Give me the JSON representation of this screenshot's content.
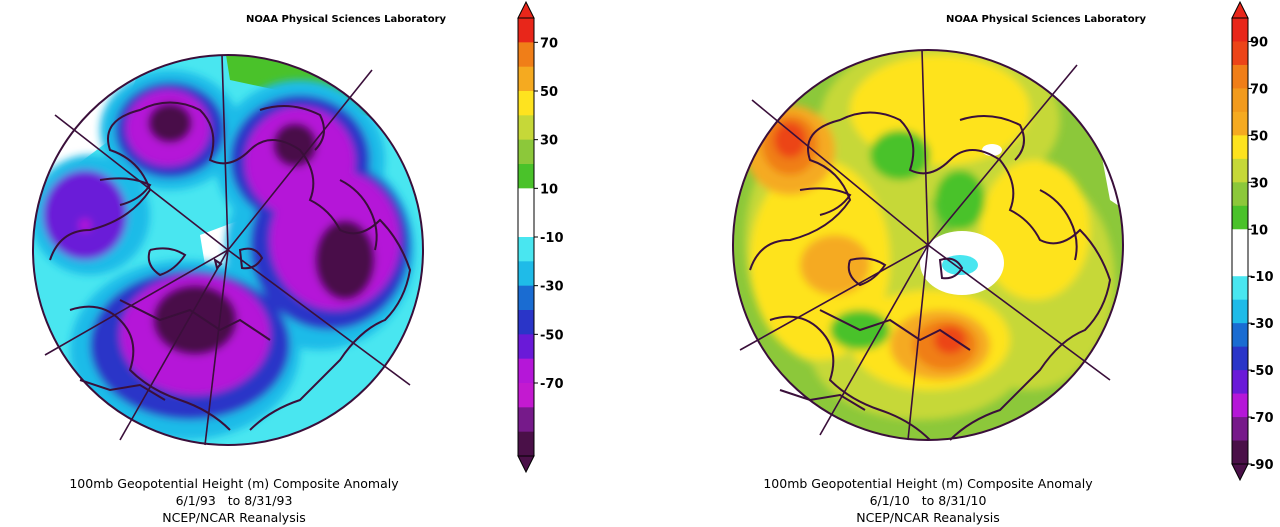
{
  "panels": [
    {
      "credit": "NOAA Physical Sciences Laboratory",
      "caption": {
        "line1": "100mb Geopotential Height (m) Composite Anomaly",
        "line2": "6/1/93   to 8/31/93",
        "line3": "NCEP/NCAR Reanalysis"
      },
      "colorbar": {
        "labels": [
          "70",
          "50",
          "30",
          "10",
          "-10",
          "-30",
          "-50",
          "-70"
        ],
        "colors": [
          "#e8261a",
          "#f07e18",
          "#f5aa20",
          "#fee31f",
          "#c6d838",
          "#8cc83a",
          "#4ac22a",
          "#ffffff",
          "#ffffff",
          "#49e6f0",
          "#1fbbe8",
          "#1a6cd2",
          "#2a35c8",
          "#6a1ad8",
          "#b517d8",
          "#c31ad0",
          "#761a8a",
          "#4a1048"
        ]
      }
    },
    {
      "credit": "NOAA Physical Sciences Laboratory",
      "caption": {
        "line1": "100mb Geopotential Height (m) Composite Anomaly",
        "line2": "6/1/10   to 8/31/10",
        "line3": "NCEP/NCAR Reanalysis"
      },
      "colorbar": {
        "labels": [
          "90",
          "70",
          "50",
          "30",
          "10",
          "-10",
          "-30",
          "-50",
          "-70",
          "-90"
        ],
        "colors": [
          "#e8261a",
          "#ec4418",
          "#f07e18",
          "#f29a1c",
          "#f5aa20",
          "#fee31f",
          "#c6d838",
          "#8cc83a",
          "#4ac22a",
          "#ffffff",
          "#ffffff",
          "#49e6f0",
          "#1fbbe8",
          "#1a6cd2",
          "#2a35c8",
          "#6a1ad8",
          "#b517d8",
          "#761a8a",
          "#4a1048"
        ]
      }
    }
  ]
}
